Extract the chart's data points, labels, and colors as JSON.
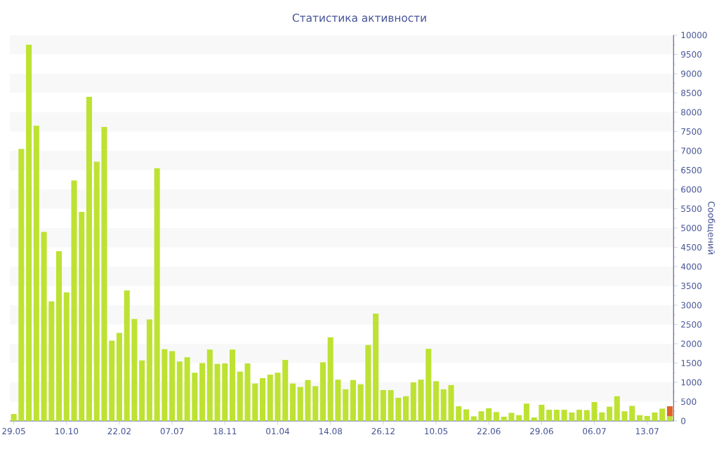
{
  "chart_data": {
    "type": "bar",
    "title": "Статистика активности",
    "ylabel": "Сообщений",
    "stacked": true,
    "categories": [
      "29.05",
      null,
      null,
      null,
      null,
      null,
      null,
      "10.10",
      null,
      null,
      null,
      null,
      null,
      null,
      "22.02",
      null,
      null,
      null,
      null,
      null,
      null,
      "07.07",
      null,
      null,
      null,
      null,
      null,
      null,
      "18.11",
      null,
      null,
      null,
      null,
      null,
      null,
      "01.04",
      null,
      null,
      null,
      null,
      null,
      null,
      "14.08",
      null,
      null,
      null,
      null,
      null,
      null,
      "26.12",
      null,
      null,
      null,
      null,
      null,
      null,
      "10.05",
      null,
      null,
      null,
      null,
      null,
      null,
      "22.06",
      null,
      null,
      null,
      null,
      null,
      null,
      "29.06",
      null,
      null,
      null,
      null,
      null,
      null,
      "06.07",
      null,
      null,
      null,
      null,
      null,
      null,
      "13.07",
      null,
      null,
      null
    ],
    "series": [
      {
        "color": "#bde232",
        "values": [
          180,
          7050,
          9750,
          7650,
          4900,
          3100,
          4400,
          3330,
          6230,
          5420,
          8400,
          6720,
          7620,
          2080,
          2280,
          3380,
          2640,
          1570,
          2630,
          6550,
          1860,
          1810,
          1540,
          1650,
          1250,
          1500,
          1850,
          1480,
          1490,
          1850,
          1280,
          1490,
          970,
          1110,
          1200,
          1250,
          1580,
          970,
          880,
          1060,
          900,
          1520,
          2170,
          1070,
          820,
          1060,
          950,
          1970,
          2780,
          800,
          800,
          600,
          640,
          1000,
          1070,
          1870,
          1030,
          820,
          930,
          380,
          300,
          120,
          250,
          330,
          230,
          110,
          210,
          150,
          450,
          90,
          420,
          290,
          290,
          290,
          220,
          290,
          280,
          490,
          220,
          370,
          640,
          250,
          390,
          150,
          130,
          220,
          320,
          120
        ]
      },
      {
        "color": "#e0622a",
        "values": [
          null,
          null,
          null,
          null,
          null,
          null,
          null,
          null,
          null,
          null,
          null,
          null,
          null,
          null,
          null,
          null,
          null,
          null,
          null,
          null,
          null,
          null,
          null,
          null,
          null,
          null,
          null,
          null,
          null,
          null,
          null,
          null,
          null,
          null,
          null,
          null,
          null,
          null,
          null,
          null,
          null,
          null,
          null,
          null,
          null,
          null,
          null,
          null,
          null,
          null,
          null,
          null,
          null,
          null,
          null,
          null,
          null,
          null,
          null,
          null,
          null,
          null,
          null,
          null,
          null,
          null,
          null,
          null,
          null,
          null,
          null,
          null,
          null,
          null,
          null,
          null,
          null,
          null,
          null,
          null,
          null,
          null,
          null,
          null,
          null,
          null,
          null,
          260
        ]
      }
    ],
    "ylim": [
      0,
      10000
    ],
    "yticks": [
      0,
      500,
      1000,
      1500,
      2000,
      2500,
      3000,
      3500,
      4000,
      4500,
      5000,
      5500,
      6000,
      6500,
      7000,
      7500,
      8000,
      8500,
      9000,
      9500,
      10000
    ],
    "bands": [
      {
        "axis": "y",
        "from": 500,
        "to": 1000,
        "color": "#f8f8f8"
      },
      {
        "axis": "y",
        "from": 1500,
        "to": 2000,
        "color": "#f8f8f8"
      },
      {
        "axis": "y",
        "from": 2500,
        "to": 3000,
        "color": "#f8f8f8"
      },
      {
        "axis": "y",
        "from": 3500,
        "to": 4000,
        "color": "#f8f8f8"
      },
      {
        "axis": "y",
        "from": 4500,
        "to": 5000,
        "color": "#f8f8f8"
      },
      {
        "axis": "y",
        "from": 5500,
        "to": 6000,
        "color": "#f8f8f8"
      },
      {
        "axis": "y",
        "from": 6500,
        "to": 7000,
        "color": "#f8f8f8"
      },
      {
        "axis": "y",
        "from": 7500,
        "to": 8000,
        "color": "#f8f8f8"
      },
      {
        "axis": "y",
        "from": 8500,
        "to": 9000,
        "color": "#f8f8f8"
      },
      {
        "axis": "y",
        "from": 9500,
        "to": 10000,
        "color": "#f8f8f8"
      }
    ]
  }
}
